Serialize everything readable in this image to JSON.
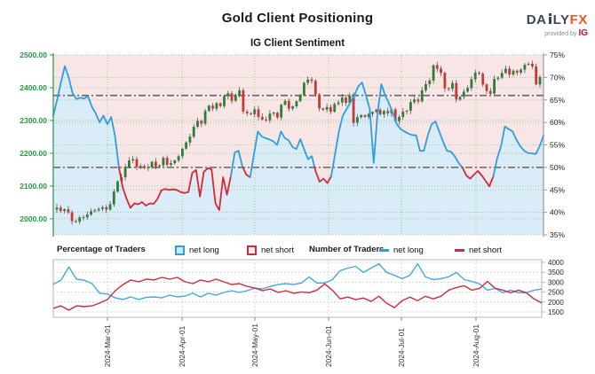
{
  "header": {
    "title": "Gold Client Positioning",
    "subtitle": "IG Client Sentiment",
    "logo": {
      "da": "DA",
      "ly": "LY",
      "fx": "FX",
      "provided_by": "provided by",
      "ig": "IG"
    }
  },
  "legend": {
    "pct": {
      "title": "Percentage of Traders",
      "items": [
        {
          "label": "net long",
          "type": "square",
          "color": "#2d9fe0",
          "fill": "#d3e9f8"
        },
        {
          "label": "net short",
          "type": "square",
          "color": "#d2293b",
          "fill": "#fdecec"
        }
      ]
    },
    "num": {
      "title": "Number of Traders",
      "items": [
        {
          "label": "net long",
          "type": "line",
          "color": "#2d9fe0"
        },
        {
          "label": "net short",
          "type": "line",
          "color": "#d2293b"
        }
      ]
    }
  },
  "chart_data": [
    {
      "type": "candlestick+line",
      "title": "IG Client Sentiment",
      "left_axis": {
        "label_color": "#1f9a3f",
        "range": [
          1951,
          2500
        ],
        "ticks": [
          {
            "label": "2500.00",
            "value": 2500
          },
          {
            "label": "2400.00",
            "value": 2400
          },
          {
            "label": "2300.00",
            "value": 2300
          },
          {
            "label": "2200.00",
            "value": 2200
          },
          {
            "label": "2100.00",
            "value": 2100
          },
          {
            "label": "2000.00",
            "value": 2000
          }
        ]
      },
      "right_axis": {
        "range": [
          35,
          75
        ],
        "ticks": [
          {
            "label": "75%",
            "value": 75
          },
          {
            "label": "70%",
            "value": 70
          },
          {
            "label": "65%",
            "value": 65
          },
          {
            "label": "60%",
            "value": 60
          },
          {
            "label": "55%",
            "value": 55
          },
          {
            "label": "50%",
            "value": 50
          },
          {
            "label": "45%",
            "value": 45
          },
          {
            "label": "40%",
            "value": 40
          },
          {
            "label": "35%",
            "value": 35
          }
        ]
      },
      "x_months": {
        "labels": [
          "2024-Mar-01",
          "2024-Apr-01",
          "2024-May-01",
          "2024-Jun-01",
          "2024-Jul-01",
          "2024-Aug-01"
        ],
        "fracs": [
          0.1105,
          0.2627,
          0.4112,
          0.5616,
          0.7101,
          0.8623
        ]
      },
      "reference_lines_pct": [
        50,
        66
      ],
      "grid": true,
      "price_close": [
        2034,
        2024,
        2029,
        2020,
        1993,
        1991,
        2004,
        2005,
        2013,
        2023,
        2026,
        2030,
        2035,
        2028,
        2044,
        2083,
        2114,
        2127,
        2158,
        2178,
        2182,
        2158,
        2161,
        2155,
        2157,
        2174,
        2160,
        2163,
        2186,
        2165,
        2170,
        2178,
        2191,
        2214,
        2233,
        2251,
        2281,
        2299,
        2290,
        2329,
        2345,
        2336,
        2353,
        2344,
        2374,
        2383,
        2360,
        2378,
        2392,
        2327,
        2322,
        2319,
        2334,
        2311,
        2303,
        2301,
        2321,
        2324,
        2309,
        2348,
        2360,
        2336,
        2343,
        2359,
        2377,
        2415,
        2425,
        2421,
        2380,
        2337,
        2333,
        2341,
        2327,
        2350,
        2355,
        2370,
        2354,
        2376,
        2293,
        2310,
        2316,
        2311,
        2320,
        2326,
        2333,
        2319,
        2329,
        2322,
        2334,
        2298,
        2311,
        2327,
        2330,
        2356,
        2364,
        2358,
        2392,
        2411,
        2422,
        2469,
        2458,
        2445,
        2398,
        2397,
        2414,
        2364,
        2372,
        2388,
        2399,
        2426,
        2446,
        2443,
        2410,
        2390,
        2382,
        2427,
        2431,
        2445,
        2458,
        2440,
        2452,
        2446,
        2455,
        2470,
        2473,
        2465,
        2410,
        2432
      ],
      "net_long_pct": [
        61.5,
        65,
        69,
        72.5,
        70,
        66.5,
        65.2,
        65.5,
        65.3,
        65.8,
        63.5,
        62,
        60,
        61.5,
        59.6,
        61.2,
        57,
        50,
        45.5,
        43,
        41,
        42,
        41.8,
        42.3,
        41.5,
        42,
        41.9,
        43,
        44.9,
        45.2,
        45,
        45.1,
        45,
        44.5,
        44.3,
        44.5,
        48.8,
        49.4,
        43.5,
        49,
        49.8,
        49.6,
        42,
        40.5,
        47.8,
        43.9,
        48,
        53.3,
        53.7,
        50.2,
        48.4,
        47.8,
        53,
        58,
        56.9,
        56.5,
        56.2,
        55.8,
        55,
        58,
        56.5,
        56,
        54.5,
        54.1,
        56.3,
        54,
        51.8,
        52.5,
        49,
        46.8,
        47.5,
        46.5,
        48,
        53,
        58,
        61.5,
        63,
        64.5,
        66,
        68,
        68.9,
        66,
        63,
        51,
        62,
        68.5,
        66,
        64.2,
        62,
        59.6,
        58.5,
        58,
        57.5,
        57.2,
        57.1,
        53.7,
        53.7,
        57,
        59.6,
        60.2,
        58,
        55.7,
        53.7,
        53.5,
        52.5,
        51,
        50,
        48.2,
        47.5,
        48.4,
        49.2,
        48.2,
        47,
        45.8,
        48,
        52,
        54.7,
        59.1,
        58.5,
        58,
        56.1,
        54.7,
        53.7,
        53.2,
        53.1,
        53,
        54.7,
        57.1
      ],
      "style": {
        "up": "#2e7d3b",
        "down": "#c23b34",
        "wick": "#444444",
        "long_line": "#2d9fe0",
        "short_line": "#d2293b",
        "area_below": "#d9ecf8",
        "area_above": "#f8e5e5",
        "grid": "#4a9e4a",
        "refline": "#666666",
        "right_axis_color": "#999999",
        "right_text": "#1a1a1a"
      }
    },
    {
      "type": "line",
      "right_axis": {
        "range": [
          1400,
          4100
        ],
        "ticks": [
          {
            "label": "4000",
            "value": 4000
          },
          {
            "label": "3500",
            "value": 3500
          },
          {
            "label": "3000",
            "value": 3000
          },
          {
            "label": "2500",
            "value": 2500
          },
          {
            "label": "2000",
            "value": 2000
          },
          {
            "label": "1500",
            "value": 1500
          }
        ]
      },
      "series": [
        {
          "name": "net long",
          "color": "#3fa9e8",
          "values": [
            2900,
            3100,
            3770,
            3150,
            3100,
            2930,
            2440,
            2400,
            2210,
            2130,
            2260,
            2130,
            2230,
            2260,
            2210,
            2350,
            2260,
            2300,
            2440,
            2260,
            2440,
            2350,
            2480,
            2570,
            2480,
            2570,
            2700,
            2660,
            2790,
            2880,
            2930,
            2880,
            2960,
            3270,
            2960,
            2960,
            3130,
            3580,
            3710,
            3800,
            3490,
            3710,
            3930,
            3490,
            3350,
            3180,
            3350,
            3930,
            3270,
            3130,
            3180,
            3270,
            3490,
            3130,
            3040,
            2910,
            2600,
            2690,
            2470,
            2600,
            2470,
            2470,
            2600,
            2650
          ]
        },
        {
          "name": "net short",
          "color": "#d2293b",
          "values": [
            1680,
            1810,
            1590,
            1810,
            1770,
            1810,
            1950,
            2130,
            2570,
            2880,
            3110,
            3020,
            3150,
            3110,
            3240,
            3150,
            3240,
            3020,
            2930,
            3110,
            3020,
            3150,
            3020,
            2880,
            2930,
            2790,
            2700,
            2570,
            2660,
            2480,
            2570,
            2440,
            2510,
            2470,
            2600,
            2910,
            2600,
            2160,
            2250,
            2120,
            2200,
            2030,
            2290,
            1940,
            1720,
            2070,
            2250,
            2070,
            2290,
            2160,
            2290,
            2600,
            2730,
            2820,
            2600,
            2690,
            3040,
            2690,
            2600,
            2470,
            2600,
            2470,
            2160,
            1950
          ]
        }
      ],
      "style": {
        "grid": "#cccccc",
        "border": "#b5b5b5",
        "tick_text": "#222222",
        "month_tick": "#888888",
        "label_text": "#333333"
      }
    }
  ]
}
